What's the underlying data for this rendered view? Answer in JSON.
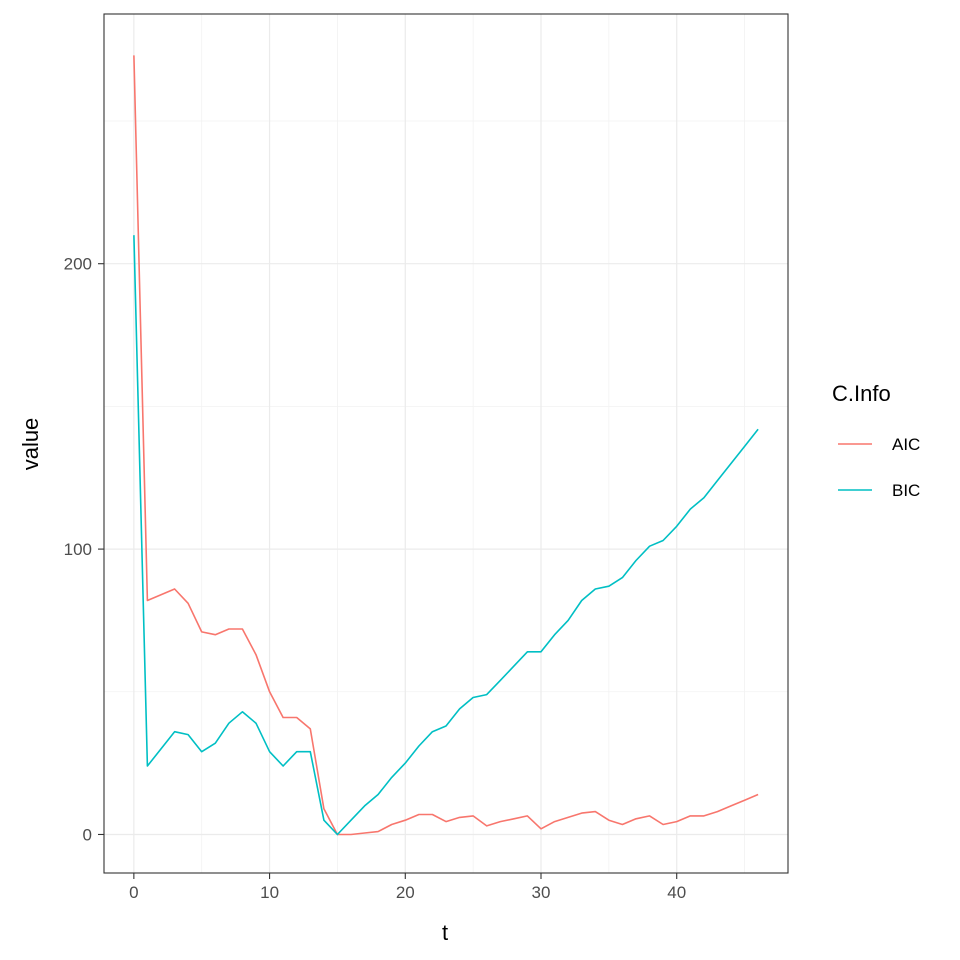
{
  "chart_data": {
    "type": "line",
    "xlabel": "t",
    "ylabel": "value",
    "xlim": [
      -2.2,
      48.2
    ],
    "ylim": [
      -13.5,
      287.5
    ],
    "xticks": [
      0,
      10,
      20,
      30,
      40
    ],
    "yticks": [
      0,
      100,
      200
    ],
    "x_minor_breaks": [
      5,
      15,
      25,
      35,
      45
    ],
    "y_minor_breaks": [
      50,
      150,
      250
    ],
    "grid": true,
    "legend": {
      "title": "C.Info",
      "position": "right"
    },
    "x": [
      0,
      1,
      2,
      3,
      4,
      5,
      6,
      7,
      8,
      9,
      10,
      11,
      12,
      13,
      14,
      15,
      16,
      17,
      18,
      19,
      20,
      21,
      22,
      23,
      24,
      25,
      26,
      27,
      28,
      29,
      30,
      31,
      32,
      33,
      34,
      35,
      36,
      37,
      38,
      39,
      40,
      41,
      42,
      43,
      44,
      45,
      46
    ],
    "series": [
      {
        "name": "AIC",
        "color": "#F8766D",
        "values": [
          273,
          82,
          84,
          86,
          81,
          71,
          70,
          72,
          72,
          63,
          50,
          41,
          41,
          37,
          9,
          0,
          0,
          0.5,
          1,
          3.5,
          5,
          7,
          7,
          4.5,
          6,
          6.5,
          3,
          4.5,
          5.5,
          6.5,
          2,
          4.5,
          6,
          7.5,
          8,
          5,
          3.5,
          5.5,
          6.5,
          3.5,
          4.5,
          6.5,
          6.5,
          8,
          10,
          12,
          14
        ]
      },
      {
        "name": "BIC",
        "color": "#00BFC4",
        "values": [
          210,
          24,
          30,
          36,
          35,
          29,
          32,
          39,
          43,
          39,
          29,
          24,
          29,
          29,
          5,
          0,
          5,
          10,
          14,
          20,
          25,
          31,
          36,
          38,
          44,
          48,
          49,
          54,
          59,
          64,
          64,
          70,
          75,
          82,
          86,
          87,
          90,
          96,
          101,
          103,
          108,
          114,
          118,
          124,
          130,
          136,
          142
        ]
      }
    ]
  }
}
